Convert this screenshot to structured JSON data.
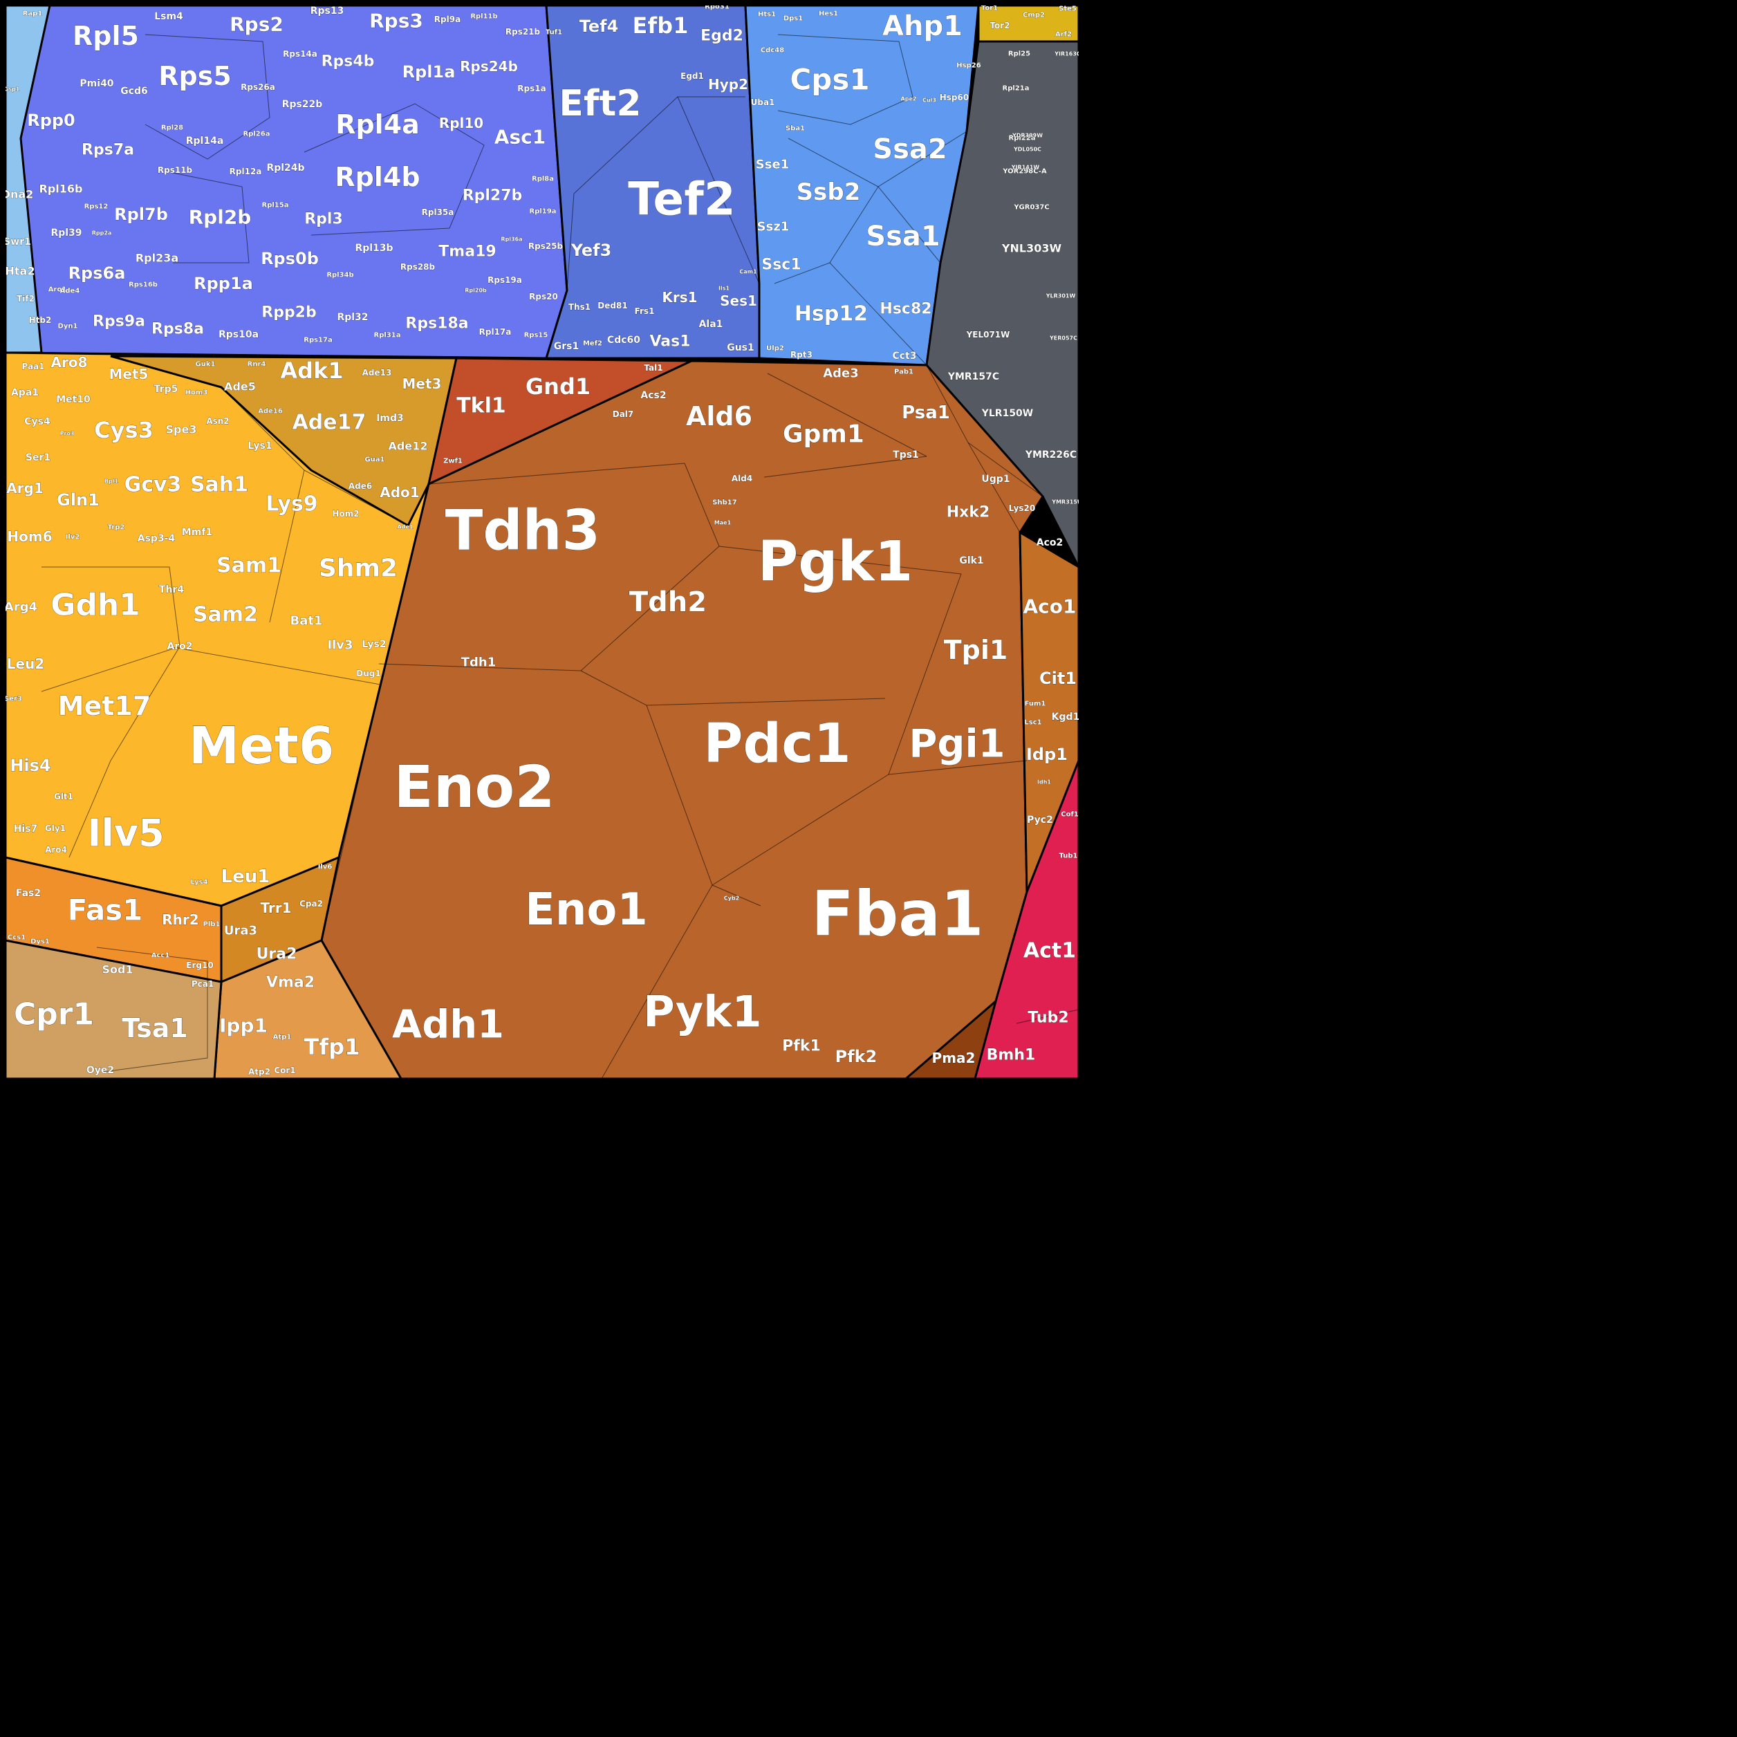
{
  "title": "",
  "regions": [
    {
      "id": "ribosome",
      "color": "#6a76f0"
    },
    {
      "id": "translation",
      "color": "#5873d8"
    },
    {
      "id": "folding",
      "color": "#5f9af0"
    },
    {
      "id": "amino-acid",
      "color": "#fcb72a"
    },
    {
      "id": "nucleotide",
      "color": "#d69b2a"
    },
    {
      "id": "ppp",
      "color": "#c24f2a"
    },
    {
      "id": "glycolysis",
      "color": "#b8642a"
    },
    {
      "id": "tca",
      "color": "#c37026"
    },
    {
      "id": "unknown",
      "color": "#555a62"
    },
    {
      "id": "left-small",
      "color": "#8fc4ef"
    },
    {
      "id": "signaling",
      "color": "#dcb41a"
    },
    {
      "id": "lipid",
      "color": "#f0902a"
    },
    {
      "id": "oxidative",
      "color": "#cfa062"
    },
    {
      "id": "vacuole",
      "color": "#e39a4a"
    },
    {
      "id": "trr",
      "color": "#d38824"
    },
    {
      "id": "cytoskeleton",
      "color": "#e02050"
    },
    {
      "id": "pma",
      "color": "#8e4010"
    }
  ],
  "labels": [
    {
      "text": "Eno2"
    },
    {
      "text": "Fba1"
    },
    {
      "text": "Pgk1"
    },
    {
      "text": "Tdh3"
    },
    {
      "text": "Pdc1"
    },
    {
      "text": "Met6"
    },
    {
      "text": "Eno1"
    },
    {
      "text": "Pyk1"
    },
    {
      "text": "Adh1"
    },
    {
      "text": "Tef2"
    },
    {
      "text": "Eft2"
    },
    {
      "text": "Pgi1"
    },
    {
      "text": "Gdh1"
    },
    {
      "text": "Ilv5"
    },
    {
      "text": "Rpl4a"
    },
    {
      "text": "Rpl4b"
    },
    {
      "text": "Ssa2"
    },
    {
      "text": "Ssa1"
    },
    {
      "text": "Ssb2"
    },
    {
      "text": "Cps1"
    },
    {
      "text": "Ahp1"
    },
    {
      "text": "Cpr1"
    },
    {
      "text": "Tsa1"
    },
    {
      "text": "Act1"
    },
    {
      "text": "Rps5"
    },
    {
      "text": "Rpl5"
    },
    {
      "text": "Tdh2"
    },
    {
      "text": "Tpi1"
    },
    {
      "text": "Gpm1"
    },
    {
      "text": "Ald6"
    },
    {
      "text": "Met17"
    },
    {
      "text": "Fas1"
    },
    {
      "text": "Hsp12"
    },
    {
      "text": "Hsc82"
    },
    {
      "text": "Shm2"
    },
    {
      "text": "Ade17"
    },
    {
      "text": "Sam1"
    },
    {
      "text": "Sam2"
    },
    {
      "text": "Cys3"
    },
    {
      "text": "Sah1"
    },
    {
      "text": "Gcv3"
    },
    {
      "text": "Lys9"
    },
    {
      "text": "Adk1"
    },
    {
      "text": "Gnd1"
    },
    {
      "text": "Tkl1"
    },
    {
      "text": "Efb1"
    },
    {
      "text": "Tef4"
    },
    {
      "text": "Egd2"
    },
    {
      "text": "Hyp2"
    },
    {
      "text": "Asc1"
    },
    {
      "text": "Rps2"
    },
    {
      "text": "Rps3"
    },
    {
      "text": "Rpp0"
    },
    {
      "text": "Rps7a"
    },
    {
      "text": "Rpl2b"
    },
    {
      "text": "Rpl7b"
    },
    {
      "text": "Rps6a"
    },
    {
      "text": "Rps0b"
    },
    {
      "text": "Rpp1a"
    },
    {
      "text": "Rpp2b"
    },
    {
      "text": "Rps8a"
    },
    {
      "text": "Rps9a"
    },
    {
      "text": "Rps18a"
    },
    {
      "text": "Tma19"
    },
    {
      "text": "Rpl27b"
    },
    {
      "text": "Rpl1a"
    },
    {
      "text": "Rps4b"
    },
    {
      "text": "Rps24b"
    },
    {
      "text": "Rpl10"
    },
    {
      "text": "Rpl3"
    },
    {
      "text": "Yef3"
    },
    {
      "text": "Vas1"
    },
    {
      "text": "Krs1"
    },
    {
      "text": "Ses1"
    },
    {
      "text": "Sse1"
    },
    {
      "text": "Ssz1"
    },
    {
      "text": "Ssc1"
    },
    {
      "text": "Psa1"
    },
    {
      "text": "Hxk2"
    },
    {
      "text": "Aco1"
    },
    {
      "text": "Cit1"
    },
    {
      "text": "Idp1"
    },
    {
      "text": "Pfk1"
    },
    {
      "text": "Pfk2"
    },
    {
      "text": "Pma2"
    },
    {
      "text": "Bmh1"
    },
    {
      "text": "Tub2"
    },
    {
      "text": "Ipp1"
    },
    {
      "text": "Tfp1"
    },
    {
      "text": "Vma2"
    },
    {
      "text": "Ura2"
    },
    {
      "text": "Ura3"
    },
    {
      "text": "Trr1"
    },
    {
      "text": "Rhr2"
    },
    {
      "text": "Leu1"
    },
    {
      "text": "Leu2"
    },
    {
      "text": "His4"
    },
    {
      "text": "Gln1"
    },
    {
      "text": "Arg1"
    },
    {
      "text": "Hom6"
    },
    {
      "text": "Arg4"
    },
    {
      "text": "Aro8"
    },
    {
      "text": "Met5"
    },
    {
      "text": "Met3"
    },
    {
      "text": "Ado1"
    },
    {
      "text": "Ade12"
    },
    {
      "text": "Imd3"
    },
    {
      "text": "Ade5"
    },
    {
      "text": "Bat1"
    },
    {
      "text": "Ilv3"
    },
    {
      "text": "Lys2"
    },
    {
      "text": "Dug1"
    },
    {
      "text": "Tdh1"
    },
    {
      "text": "Ugp1"
    },
    {
      "text": "Tps1"
    },
    {
      "text": "Lys20"
    },
    {
      "text": "Aco2"
    },
    {
      "text": "Kgd1"
    },
    {
      "text": "Pyc2"
    },
    {
      "text": "Glk1"
    },
    {
      "text": "Ade3"
    },
    {
      "text": "Acs2"
    },
    {
      "text": "Dal7"
    },
    {
      "text": "Tal1"
    },
    {
      "text": "Ald4"
    },
    {
      "text": "YNL303W"
    },
    {
      "text": "YLR150W"
    },
    {
      "text": "YMR226C"
    },
    {
      "text": "YMR157C"
    },
    {
      "text": "YEL071W"
    },
    {
      "text": "Hta2"
    },
    {
      "text": "Dna2"
    },
    {
      "text": "Swr1"
    },
    {
      "text": "Sod1"
    },
    {
      "text": "Oye2"
    },
    {
      "text": "Uba1"
    },
    {
      "text": "Hsp60"
    },
    {
      "text": "Met10"
    },
    {
      "text": "Spe3"
    },
    {
      "text": "Asp3-4"
    },
    {
      "text": "Thr4"
    },
    {
      "text": "Aro2"
    },
    {
      "text": "Ser3"
    },
    {
      "text": "Glt1"
    },
    {
      "text": "His7"
    },
    {
      "text": "Gly1"
    },
    {
      "text": "Aro4"
    },
    {
      "text": "Fas2"
    },
    {
      "text": "Plb1"
    },
    {
      "text": "Erg10"
    },
    {
      "text": "Acc1"
    },
    {
      "text": "Cpa2"
    },
    {
      "text": "Atp1"
    },
    {
      "text": "Atp2"
    },
    {
      "text": "Cor1"
    },
    {
      "text": "Ccs1"
    },
    {
      "text": "Dys1"
    },
    {
      "text": "Pca1"
    },
    {
      "text": "Frs1"
    },
    {
      "text": "Ala1"
    },
    {
      "text": "Gus1"
    },
    {
      "text": "Grs1"
    },
    {
      "text": "Cdc60"
    },
    {
      "text": "Ths1"
    },
    {
      "text": "Ded81"
    },
    {
      "text": "Egd1"
    },
    {
      "text": "Rpt3"
    },
    {
      "text": "Cct3"
    },
    {
      "text": "Ulp2"
    },
    {
      "text": "Sba1"
    },
    {
      "text": "Tor1"
    },
    {
      "text": "Tor2"
    },
    {
      "text": "Cmp2"
    },
    {
      "text": "Ste5"
    },
    {
      "text": "Arf2"
    },
    {
      "text": "Tub1"
    },
    {
      "text": "Cof1"
    },
    {
      "text": "Fum1"
    },
    {
      "text": "Lsc1"
    },
    {
      "text": "Idh1"
    },
    {
      "text": "Cyb2"
    },
    {
      "text": "Shb17"
    },
    {
      "text": "Mae1"
    },
    {
      "text": "Zwf1"
    },
    {
      "text": "Ade1"
    },
    {
      "text": "Hom2"
    },
    {
      "text": "Lys1"
    },
    {
      "text": "Asn2"
    },
    {
      "text": "Hom3"
    },
    {
      "text": "Trp5"
    },
    {
      "text": "Guk1"
    },
    {
      "text": "Rnr4"
    },
    {
      "text": "Ade13"
    },
    {
      "text": "Ade16"
    },
    {
      "text": "Gua1"
    },
    {
      "text": "Ade6"
    },
    {
      "text": "Pro3"
    },
    {
      "text": "Ser1"
    },
    {
      "text": "Cys4"
    },
    {
      "text": "Apa1"
    },
    {
      "text": "Paa1"
    },
    {
      "text": "Bpl1"
    },
    {
      "text": "Trp2"
    },
    {
      "text": "Mmf1"
    },
    {
      "text": "Ilv2"
    },
    {
      "text": "Ilv6"
    },
    {
      "text": "Lys4"
    },
    {
      "text": "Aro1"
    },
    {
      "text": "Tif2"
    },
    {
      "text": "Htb2"
    },
    {
      "text": "Dyn1"
    },
    {
      "text": "Gsp1"
    },
    {
      "text": "Rap1"
    },
    {
      "text": "Rpo31"
    },
    {
      "text": "Tuf1"
    },
    {
      "text": "Cam1"
    },
    {
      "text": "Mef2"
    },
    {
      "text": "Ils1"
    },
    {
      "text": "Hts1"
    },
    {
      "text": "Dps1"
    },
    {
      "text": "Hes1"
    },
    {
      "text": "Cdc48"
    },
    {
      "text": "Hsp26"
    },
    {
      "text": "Ape2"
    },
    {
      "text": "Cul3"
    },
    {
      "text": "Pab1"
    },
    {
      "text": "Ade4"
    },
    {
      "text": "Lsm4"
    },
    {
      "text": "Pmi40"
    },
    {
      "text": "Gcd6"
    },
    {
      "text": "Rps14a"
    },
    {
      "text": "Rps13"
    },
    {
      "text": "Rpl9a"
    },
    {
      "text": "Rpl11b"
    },
    {
      "text": "Rps21b"
    },
    {
      "text": "Rps1a"
    },
    {
      "text": "Rps26a"
    },
    {
      "text": "Rps22b"
    },
    {
      "text": "Rpl28"
    },
    {
      "text": "Rpl26a"
    },
    {
      "text": "Rpl14a"
    },
    {
      "text": "Rps11b"
    },
    {
      "text": "Rpl12a"
    },
    {
      "text": "Rpl24b"
    },
    {
      "text": "Rpl16b"
    },
    {
      "text": "Rpl39"
    },
    {
      "text": "Rpl15a"
    },
    {
      "text": "Rpl23a"
    },
    {
      "text": "Rpl13b"
    },
    {
      "text": "Rpl35a"
    },
    {
      "text": "Rpl8a"
    },
    {
      "text": "Rpl19a"
    },
    {
      "text": "Rpl36a"
    },
    {
      "text": "Rps25b"
    },
    {
      "text": "Rps28b"
    },
    {
      "text": "Rpl34b"
    },
    {
      "text": "Rpl20b"
    },
    {
      "text": "Rps19a"
    },
    {
      "text": "Rps20"
    },
    {
      "text": "Rpl32"
    },
    {
      "text": "Rpl31a"
    },
    {
      "text": "Rpl17a"
    },
    {
      "text": "Rps15"
    },
    {
      "text": "Rps10a"
    },
    {
      "text": "Rps17a"
    },
    {
      "text": "Rps16b"
    },
    {
      "text": "Rps12"
    },
    {
      "text": "Rpp2a"
    },
    {
      "text": "Rpl21a"
    },
    {
      "text": "Rpl25"
    },
    {
      "text": "Rpl22a"
    },
    {
      "text": "YGR037C"
    },
    {
      "text": "YMR315W"
    },
    {
      "text": "YER057C"
    },
    {
      "text": "YLR301W"
    },
    {
      "text": "YOR298C-A"
    },
    {
      "text": "YJR141W"
    },
    {
      "text": "YDL050C"
    },
    {
      "text": "YDR399W"
    },
    {
      "text": "YIR163C"
    },
    {
      "text": "YDR043W"
    },
    {
      "text": "YBR214W"
    },
    {
      "text": "YDR277C"
    }
  ]
}
